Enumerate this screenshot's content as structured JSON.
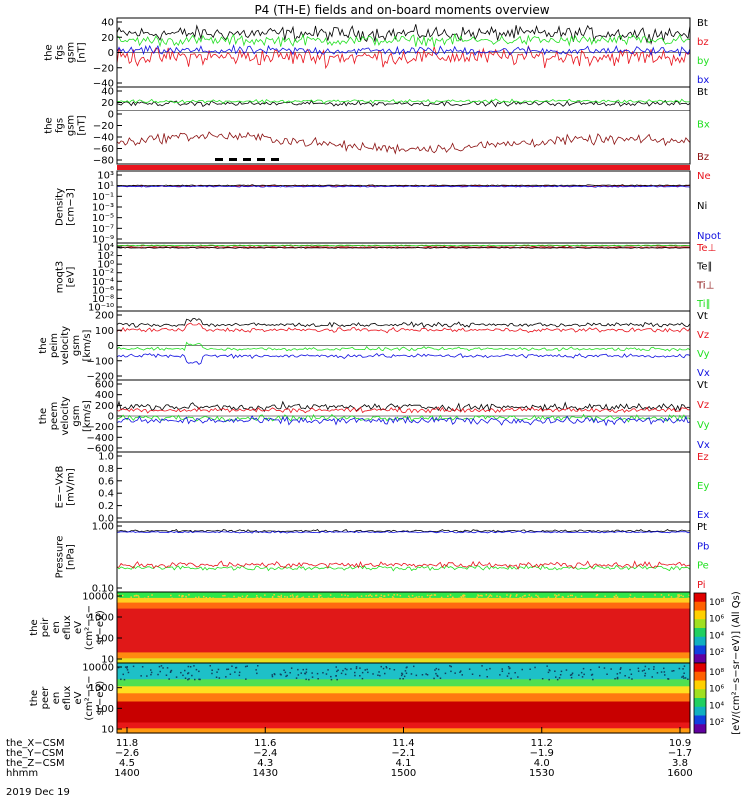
{
  "title": "P4 (TH-E) fields and on-board moments overview",
  "colors": {
    "black": "#000000",
    "red": "#e8141e",
    "green": "#22e022",
    "blue": "#1010e0",
    "darkred": "#8b1010"
  },
  "chart_data": [
    {
      "type": "line",
      "ylabel_lines": [
        "the",
        "fgs",
        "gsm",
        "[nT]"
      ],
      "yticks": [
        "40",
        "20",
        "0",
        "−20",
        "−40"
      ],
      "ylim": [
        -40,
        40
      ],
      "yscale": "linear",
      "series": [
        {
          "name": "Bt",
          "color": "black",
          "mean": 22
        },
        {
          "name": "bz",
          "color": "red",
          "mean": -5
        },
        {
          "name": "by",
          "color": "green",
          "mean": 14
        },
        {
          "name": "bx",
          "color": "blue",
          "mean": 2
        }
      ]
    },
    {
      "type": "line",
      "ylabel_lines": [
        "the",
        "fgs",
        "gsm",
        "[nT]"
      ],
      "yticks": [
        "40",
        "20",
        "0",
        "−20",
        "−40",
        "−60",
        "−80"
      ],
      "ylim": [
        -90,
        40
      ],
      "yscale": "linear",
      "series": [
        {
          "name": "Bt",
          "color": "black",
          "mean": 12
        },
        {
          "name": "Bx",
          "color": "green",
          "mean": 16
        },
        {
          "name": "Bz",
          "color": "darkred",
          "mean": -55
        }
      ]
    },
    {
      "type": "line",
      "ylabel_lines": [
        "Density",
        "[cm−3]"
      ],
      "yticks": [
        "10³",
        "10¹",
        "10⁻¹",
        "10⁻³",
        "10⁻⁵",
        "10⁻⁷",
        "10⁻⁹"
      ],
      "ylim": [
        -10,
        3
      ],
      "yscale": "log",
      "series": [
        {
          "name": "Ne",
          "color": "red",
          "mean": 0.3
        },
        {
          "name": "Ni",
          "color": "black",
          "mean": 0.4
        },
        {
          "name": "Npot",
          "color": "blue",
          "mean": 0.2
        }
      ]
    },
    {
      "type": "line",
      "ylabel_lines": [
        "moqt3",
        "[eV]"
      ],
      "yticks": [
        "10⁴",
        "10²",
        "10⁰",
        "10⁻²",
        "10⁻⁴",
        "10⁻⁶",
        "10⁻⁸",
        "10⁻¹⁰"
      ],
      "ylim": [
        -10,
        4
      ],
      "yscale": "log",
      "series": [
        {
          "name": "Te⊥",
          "color": "red",
          "mean": 3.1
        },
        {
          "name": "Te∥",
          "color": "black",
          "mean": 3.0
        },
        {
          "name": "Ti⊥",
          "color": "darkred",
          "mean": 3.4
        },
        {
          "name": "Ti∥",
          "color": "green",
          "mean": 3.5
        }
      ]
    },
    {
      "type": "line",
      "ylabel_lines": [
        "the",
        "peim",
        "velocity",
        "gsm",
        "[km/s]"
      ],
      "yticks": [
        "200",
        "100",
        "0",
        "−100",
        "−200"
      ],
      "ylim": [
        -200,
        200
      ],
      "yscale": "linear",
      "series": [
        {
          "name": "Vt",
          "color": "black",
          "mean": 120
        },
        {
          "name": "Vz",
          "color": "red",
          "mean": 90
        },
        {
          "name": "Vy",
          "color": "green",
          "mean": -20
        },
        {
          "name": "Vx",
          "color": "blue",
          "mean": -60
        }
      ]
    },
    {
      "type": "line",
      "ylabel_lines": [
        "the",
        "peem",
        "velocity",
        "gsm",
        "[km/s]"
      ],
      "yticks": [
        "600",
        "400",
        "200",
        "0",
        "−200",
        "−400",
        "−600"
      ],
      "ylim": [
        -600,
        600
      ],
      "yscale": "linear",
      "series": [
        {
          "name": "Vt",
          "color": "black",
          "mean": 150
        },
        {
          "name": "Vz",
          "color": "red",
          "mean": 100
        },
        {
          "name": "Vy",
          "color": "green",
          "mean": -30
        },
        {
          "name": "Vx",
          "color": "blue",
          "mean": -80
        }
      ]
    },
    {
      "type": "line",
      "ylabel_lines": [
        "E=−VxB",
        "[mV/m]"
      ],
      "yticks": [
        "1.0",
        "0.8",
        "0.6",
        "0.4",
        "0.2",
        "0.0"
      ],
      "ylim": [
        0,
        1
      ],
      "yscale": "linear",
      "series": [
        {
          "name": "Ez",
          "color": "red"
        },
        {
          "name": "Ey",
          "color": "green"
        },
        {
          "name": "Ex",
          "color": "blue"
        }
      ]
    },
    {
      "type": "line",
      "ylabel_lines": [
        "Pressure",
        "[nPa]"
      ],
      "yticks": [
        "1.00",
        "0.10"
      ],
      "ylim": [
        -1.5,
        0.3
      ],
      "yscale": "log",
      "series": [
        {
          "name": "Pt",
          "color": "black",
          "mean": 0.07
        },
        {
          "name": "Pb",
          "color": "blue",
          "mean": 0.04
        },
        {
          "name": "Pe",
          "color": "green",
          "mean": -0.88
        },
        {
          "name": "Pi",
          "color": "red",
          "mean": -0.8
        }
      ]
    },
    {
      "type": "heatmap",
      "ylabel_lines": [
        "the",
        "peir",
        "en",
        "eflux",
        "eV",
        "(cm²−s−",
        "sr−eV)"
      ],
      "yticks": [
        "10000",
        "1000",
        "100",
        "10"
      ],
      "ylim": [
        0.7,
        4.3
      ],
      "yscale": "log"
    },
    {
      "type": "heatmap",
      "ylabel_lines": [
        "the",
        "peer",
        "en",
        "eflux",
        "eV",
        "(cm²−s−",
        "sr−eV)"
      ],
      "yticks": [
        "10000",
        "1000",
        "100",
        "10"
      ],
      "ylim": [
        0.7,
        4.3
      ],
      "yscale": "log"
    }
  ],
  "colorbars": [
    {
      "ticks": [
        "10⁸",
        "10⁶",
        "10⁴",
        "10²"
      ]
    },
    {
      "ticks": [
        "10⁸",
        "10⁶",
        "10⁴",
        "10²"
      ]
    }
  ],
  "colorbar_label": "[eV/(cm²−s−sr−eV)] (All Qs)",
  "x_axis": {
    "rows": [
      {
        "label": "the_X−CSM",
        "values": [
          "11.8",
          "11.6",
          "11.4",
          "11.2",
          "10.9"
        ]
      },
      {
        "label": "the_Y−CSM",
        "values": [
          "−2.6",
          "−2.4",
          "−2.1",
          "−1.9",
          "−1.7"
        ]
      },
      {
        "label": "the_Z−CSM",
        "values": [
          "4.5",
          "4.3",
          "4.1",
          "4.0",
          "3.8"
        ]
      },
      {
        "label": "hhmm",
        "values": [
          "1400",
          "1430",
          "1500",
          "1530",
          "1600"
        ]
      }
    ],
    "date": "2019 Dec 19"
  }
}
